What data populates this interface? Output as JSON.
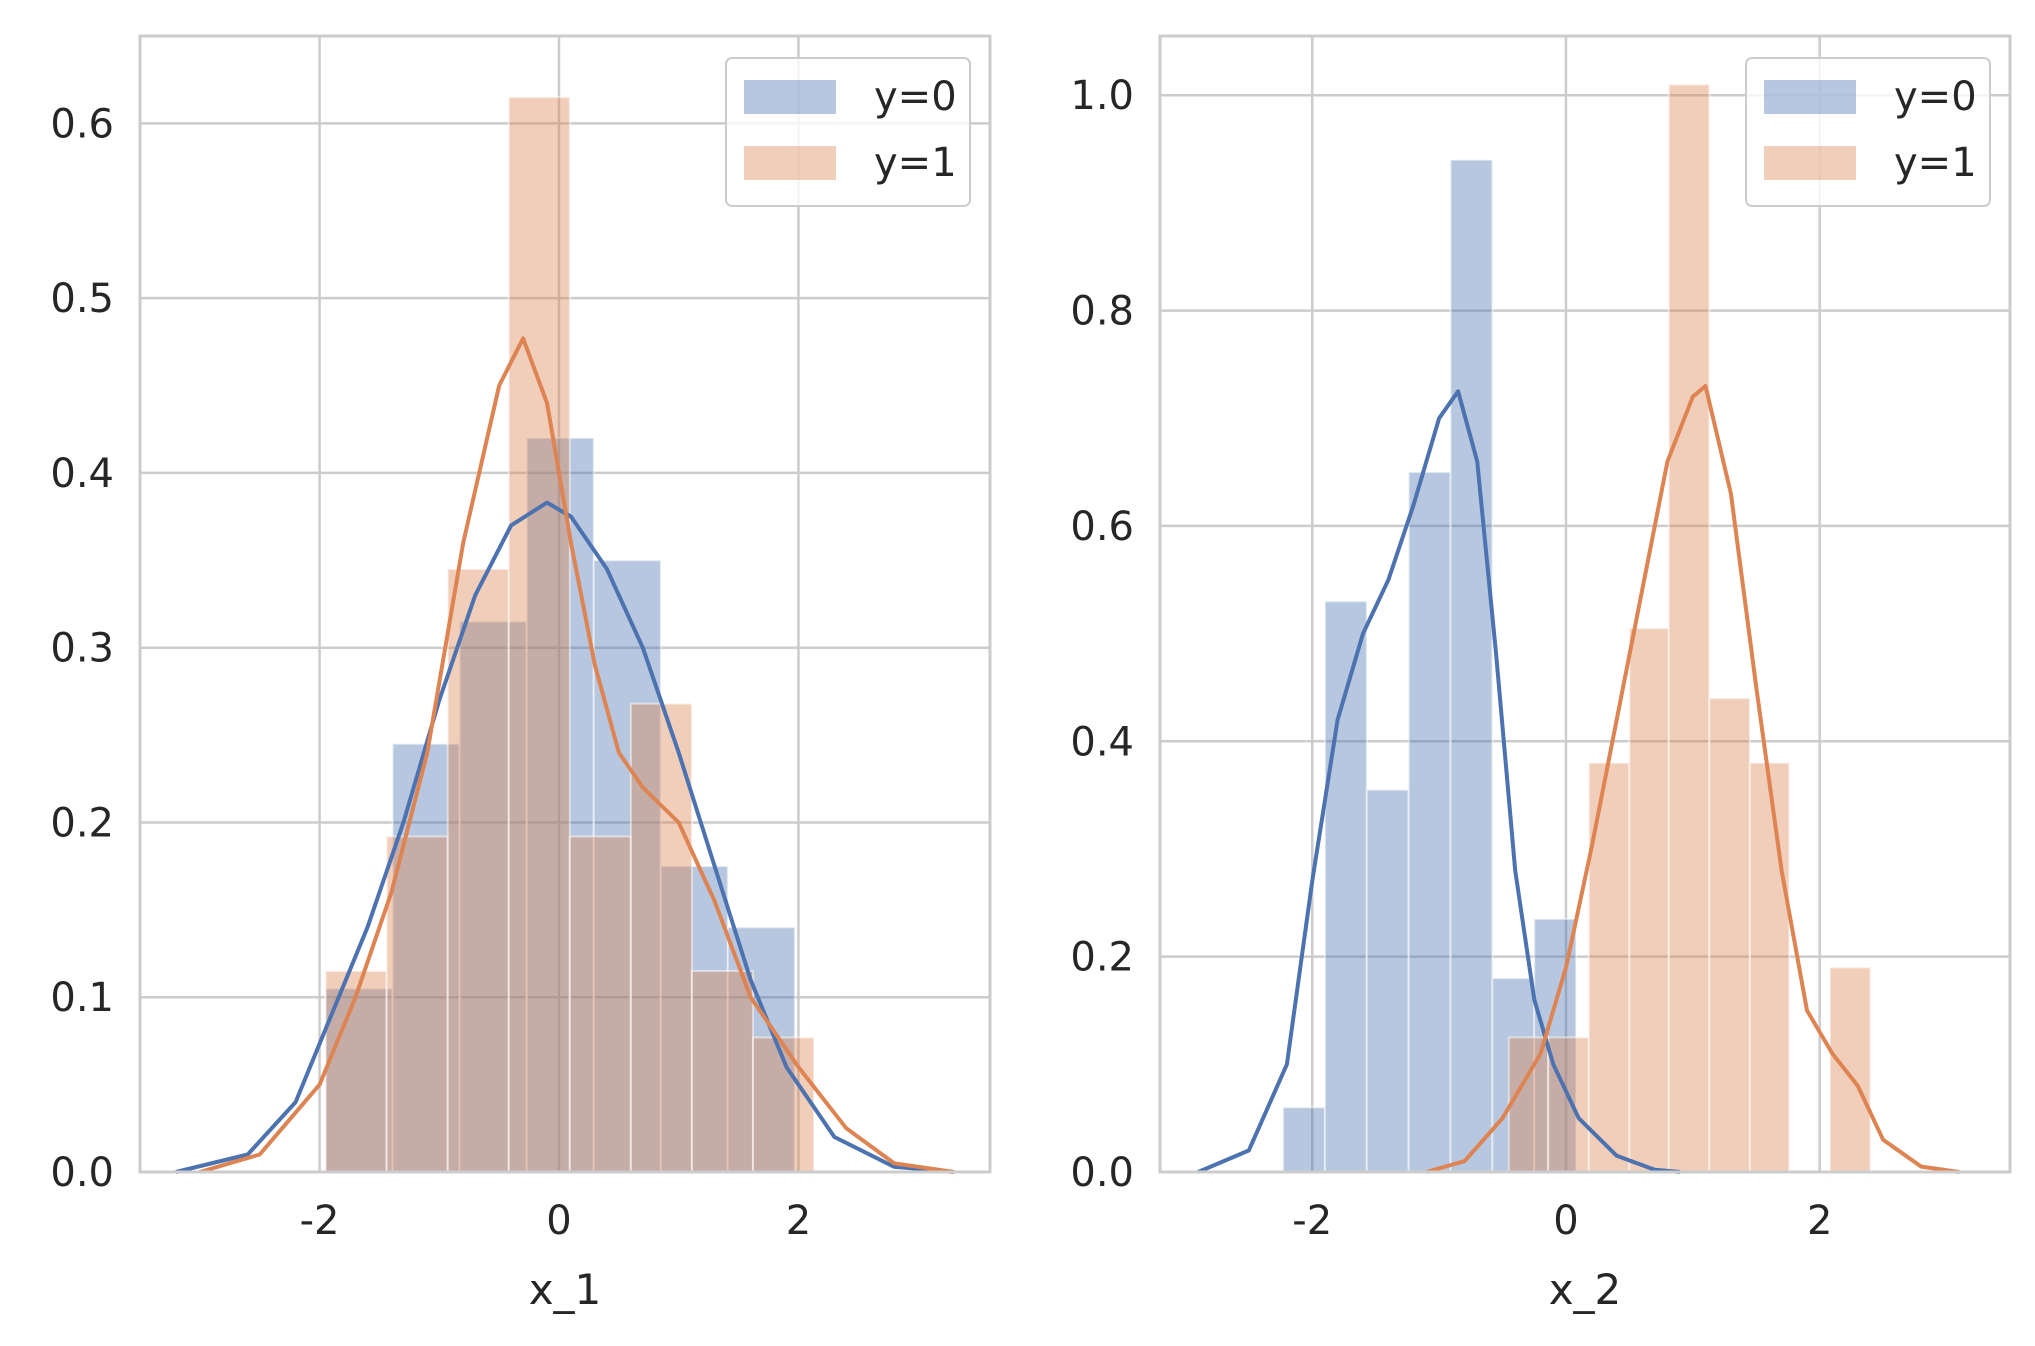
{
  "colors": {
    "blue": "#4c72b0",
    "orange": "#dd8452",
    "grid": "#cccccc",
    "spine": "#cccccc",
    "background": "#ffffff"
  },
  "chart_data": [
    {
      "type": "histogram",
      "title": "",
      "xlabel": "x_1",
      "ylabel": "",
      "xlim": [
        -3.5,
        3.6
      ],
      "ylim": [
        0,
        0.65
      ],
      "xticks": [
        -2,
        0,
        2
      ],
      "xtick_labels": [
        "-2",
        "0",
        "2"
      ],
      "yticks": [
        0.0,
        0.1,
        0.2,
        0.3,
        0.4,
        0.5,
        0.6
      ],
      "ytick_labels": [
        "0.0",
        "0.1",
        "0.2",
        "0.3",
        "0.4",
        "0.5",
        "0.6"
      ],
      "grid": true,
      "legend": {
        "position": "top-right",
        "entries": [
          "y=0",
          "y=1"
        ]
      },
      "series": [
        {
          "name": "y=0",
          "color": "#4c72b0",
          "hist": {
            "bins": [
              [
                -1.95,
                -1.39,
                0.105
              ],
              [
                -1.39,
                -0.83,
                0.245
              ],
              [
                -0.83,
                -0.27,
                0.315
              ],
              [
                -0.27,
                0.29,
                0.42
              ],
              [
                0.29,
                0.85,
                0.35
              ],
              [
                0.85,
                1.41,
                0.175
              ],
              [
                1.41,
                1.97,
                0.14
              ]
            ]
          },
          "kde": [
            [
              -3.2,
              0.0
            ],
            [
              -2.6,
              0.01
            ],
            [
              -2.2,
              0.04
            ],
            [
              -1.9,
              0.09
            ],
            [
              -1.6,
              0.14
            ],
            [
              -1.3,
              0.2
            ],
            [
              -1.0,
              0.27
            ],
            [
              -0.7,
              0.33
            ],
            [
              -0.4,
              0.37
            ],
            [
              -0.1,
              0.383
            ],
            [
              0.1,
              0.375
            ],
            [
              0.4,
              0.345
            ],
            [
              0.7,
              0.3
            ],
            [
              1.0,
              0.24
            ],
            [
              1.3,
              0.175
            ],
            [
              1.6,
              0.11
            ],
            [
              1.9,
              0.06
            ],
            [
              2.3,
              0.02
            ],
            [
              2.8,
              0.003
            ],
            [
              3.3,
              0.0
            ]
          ]
        },
        {
          "name": "y=1",
          "color": "#dd8452",
          "hist": {
            "bins": [
              [
                -1.95,
                -1.44,
                0.115
              ],
              [
                -1.44,
                -0.93,
                0.192
              ],
              [
                -0.93,
                -0.42,
                0.345
              ],
              [
                -0.42,
                0.09,
                0.615
              ],
              [
                0.09,
                0.6,
                0.192
              ],
              [
                0.6,
                1.11,
                0.268
              ],
              [
                1.11,
                1.62,
                0.115
              ],
              [
                1.62,
                2.13,
                0.077
              ]
            ]
          },
          "kde": [
            [
              -3.0,
              0.0
            ],
            [
              -2.5,
              0.01
            ],
            [
              -2.0,
              0.05
            ],
            [
              -1.7,
              0.1
            ],
            [
              -1.4,
              0.16
            ],
            [
              -1.1,
              0.24
            ],
            [
              -0.8,
              0.36
            ],
            [
              -0.5,
              0.45
            ],
            [
              -0.3,
              0.477
            ],
            [
              -0.1,
              0.44
            ],
            [
              0.1,
              0.36
            ],
            [
              0.3,
              0.29
            ],
            [
              0.5,
              0.24
            ],
            [
              0.7,
              0.22
            ],
            [
              1.0,
              0.2
            ],
            [
              1.3,
              0.155
            ],
            [
              1.6,
              0.1
            ],
            [
              2.0,
              0.06
            ],
            [
              2.4,
              0.025
            ],
            [
              2.8,
              0.005
            ],
            [
              3.3,
              0.0
            ]
          ]
        }
      ]
    },
    {
      "type": "histogram",
      "title": "",
      "xlabel": "x_2",
      "ylabel": "",
      "xlim": [
        -3.2,
        3.5
      ],
      "ylim": [
        0,
        1.055
      ],
      "xticks": [
        -2,
        0,
        2
      ],
      "xtick_labels": [
        "-2",
        "0",
        "2"
      ],
      "yticks": [
        0.0,
        0.2,
        0.4,
        0.6,
        0.8,
        1.0
      ],
      "ytick_labels": [
        "0.0",
        "0.2",
        "0.4",
        "0.6",
        "0.8",
        "1.0"
      ],
      "grid": true,
      "legend": {
        "position": "top-right",
        "entries": [
          "y=0",
          "y=1"
        ]
      },
      "series": [
        {
          "name": "y=0",
          "color": "#4c72b0",
          "hist": {
            "bins": [
              [
                -2.23,
                -1.9,
                0.06
              ],
              [
                -1.9,
                -1.57,
                0.53
              ],
              [
                -1.57,
                -1.24,
                0.355
              ],
              [
                -1.24,
                -0.91,
                0.65
              ],
              [
                -0.91,
                -0.58,
                0.94
              ],
              [
                -0.58,
                -0.25,
                0.18
              ],
              [
                -0.25,
                0.08,
                0.235
              ]
            ]
          },
          "kde": [
            [
              -2.9,
              0.0
            ],
            [
              -2.5,
              0.02
            ],
            [
              -2.2,
              0.1
            ],
            [
              -2.0,
              0.27
            ],
            [
              -1.8,
              0.42
            ],
            [
              -1.6,
              0.5
            ],
            [
              -1.4,
              0.55
            ],
            [
              -1.2,
              0.62
            ],
            [
              -1.0,
              0.7
            ],
            [
              -0.85,
              0.725
            ],
            [
              -0.7,
              0.66
            ],
            [
              -0.55,
              0.48
            ],
            [
              -0.4,
              0.28
            ],
            [
              -0.25,
              0.16
            ],
            [
              -0.1,
              0.1
            ],
            [
              0.1,
              0.05
            ],
            [
              0.4,
              0.015
            ],
            [
              0.7,
              0.002
            ],
            [
              0.9,
              0.0
            ]
          ]
        },
        {
          "name": "y=1",
          "color": "#dd8452",
          "hist": {
            "bins": [
              [
                -0.45,
                -0.14,
                0.125
              ],
              [
                -0.14,
                0.18,
                0.125
              ],
              [
                0.18,
                0.5,
                0.38
              ],
              [
                0.5,
                0.81,
                0.505
              ],
              [
                0.81,
                1.13,
                1.01
              ],
              [
                1.13,
                1.45,
                0.44
              ],
              [
                1.45,
                1.76,
                0.38
              ],
              [
                2.08,
                2.4,
                0.19
              ]
            ]
          },
          "kde": [
            [
              -1.1,
              0.0
            ],
            [
              -0.8,
              0.01
            ],
            [
              -0.5,
              0.05
            ],
            [
              -0.2,
              0.11
            ],
            [
              0.0,
              0.19
            ],
            [
              0.2,
              0.3
            ],
            [
              0.4,
              0.42
            ],
            [
              0.6,
              0.54
            ],
            [
              0.8,
              0.66
            ],
            [
              1.0,
              0.72
            ],
            [
              1.1,
              0.73
            ],
            [
              1.3,
              0.63
            ],
            [
              1.5,
              0.45
            ],
            [
              1.7,
              0.28
            ],
            [
              1.9,
              0.15
            ],
            [
              2.1,
              0.11
            ],
            [
              2.3,
              0.08
            ],
            [
              2.5,
              0.03
            ],
            [
              2.8,
              0.005
            ],
            [
              3.1,
              0.0
            ]
          ]
        }
      ]
    }
  ]
}
